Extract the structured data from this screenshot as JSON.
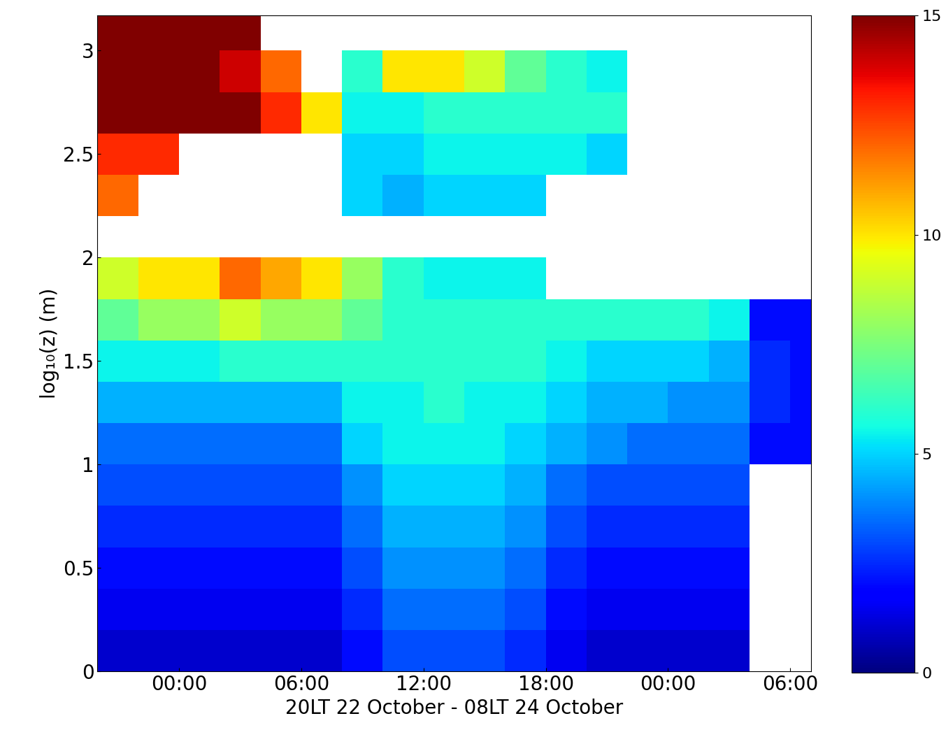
{
  "chart_data": {
    "type": "heatmap",
    "xlabel": "20LT 22 October - 08LT 24 October",
    "ylabel": "log₁₀(z) (m)",
    "x": [
      1,
      3,
      5,
      7,
      9,
      11,
      13,
      15,
      17,
      19,
      21,
      23,
      25,
      27,
      29,
      31,
      33,
      35
    ],
    "y": [
      0.1,
      0.3,
      0.5,
      0.7,
      0.9,
      1.1,
      1.3,
      1.5,
      1.7,
      1.9,
      2.1,
      2.3,
      2.5,
      2.7,
      2.9,
      3.1
    ],
    "cells_by_x": [
      [
        1,
        1.5,
        2,
        2.5,
        3,
        3.5,
        4.5,
        5.5,
        7,
        9,
        null,
        12,
        13,
        15,
        15,
        15
      ],
      [
        1,
        1.5,
        2,
        2.5,
        3,
        3.5,
        4.5,
        5.5,
        8,
        10,
        null,
        null,
        13,
        15,
        15,
        15
      ],
      [
        1,
        1.5,
        2,
        2.5,
        3,
        3.5,
        4.5,
        5.5,
        8,
        10,
        null,
        null,
        null,
        15,
        15,
        15
      ],
      [
        1,
        1.5,
        2,
        2.5,
        3,
        3.5,
        4.5,
        6,
        9,
        12,
        null,
        null,
        null,
        15,
        14,
        15
      ],
      [
        1,
        1.5,
        2,
        2.5,
        3,
        3.5,
        4.5,
        6,
        8,
        11,
        null,
        null,
        null,
        13,
        12,
        null
      ],
      [
        1,
        1.5,
        2,
        2.5,
        3,
        3.5,
        4.5,
        6,
        8,
        10,
        null,
        null,
        null,
        10,
        null,
        null
      ],
      [
        2,
        2.5,
        3,
        3.5,
        4,
        5,
        5.5,
        6,
        7,
        8,
        null,
        5,
        5,
        5.5,
        6,
        null
      ],
      [
        3,
        3.5,
        4,
        4.5,
        5,
        5.5,
        5.5,
        6,
        6,
        6,
        null,
        4.5,
        5,
        5.5,
        10,
        null
      ],
      [
        3,
        3.5,
        4,
        4.5,
        5,
        5.5,
        6,
        6,
        6,
        5.5,
        null,
        5,
        5.5,
        6,
        10,
        null
      ],
      [
        3,
        3.5,
        4,
        4.5,
        5,
        5.5,
        5.5,
        6,
        6,
        5.5,
        null,
        5,
        5.5,
        6,
        9,
        null
      ],
      [
        2.5,
        3,
        3.5,
        4,
        4.5,
        5,
        5.5,
        6,
        6,
        5.5,
        null,
        5,
        5.5,
        6,
        7,
        null
      ],
      [
        1.5,
        2,
        2.5,
        3,
        3.5,
        4.5,
        5,
        5.5,
        6,
        null,
        null,
        null,
        5.5,
        6,
        6,
        null
      ],
      [
        1,
        1.5,
        2,
        2.5,
        3,
        4,
        4.5,
        5,
        6,
        null,
        null,
        null,
        5,
        6,
        5.5,
        null
      ],
      [
        1,
        1.5,
        2,
        2.5,
        3,
        3.5,
        4.5,
        5,
        6,
        null,
        null,
        null,
        null,
        null,
        null,
        null
      ],
      [
        1,
        1.5,
        2,
        2.5,
        3,
        3.5,
        4,
        5,
        6,
        null,
        null,
        null,
        null,
        null,
        null,
        null
      ],
      [
        1,
        1.5,
        2,
        2.5,
        3,
        3.5,
        4,
        4.5,
        5.5,
        null,
        null,
        null,
        null,
        null,
        null,
        null
      ],
      [
        null,
        null,
        null,
        null,
        null,
        2,
        2.5,
        2.5,
        2,
        null,
        null,
        null,
        null,
        null,
        null,
        null
      ],
      [
        null,
        null,
        null,
        null,
        null,
        2,
        2,
        2,
        2,
        null,
        null,
        null,
        null,
        null,
        null,
        null
      ]
    ],
    "xlim": [
      0,
      35
    ],
    "ylim": [
      0,
      3.17
    ],
    "xticks": [
      {
        "value": 4,
        "label": "00:00"
      },
      {
        "value": 10,
        "label": "06:00"
      },
      {
        "value": 16,
        "label": "12:00"
      },
      {
        "value": 22,
        "label": "18:00"
      },
      {
        "value": 28,
        "label": "00:00"
      },
      {
        "value": 34,
        "label": "06:00"
      }
    ],
    "yticks": [
      0,
      0.5,
      1,
      1.5,
      2,
      2.5,
      3
    ],
    "colorbar_range": [
      0,
      15
    ],
    "colorbar_ticks": [
      0,
      5,
      10,
      15
    ]
  }
}
